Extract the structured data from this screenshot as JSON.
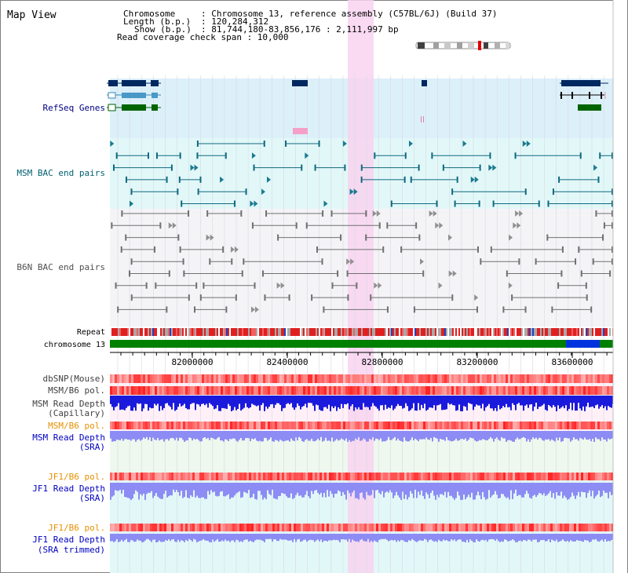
{
  "view": {
    "title": "Map View",
    "chromosome_key": "Chromosome",
    "chromosome_value": ": Chromosome 13, reference assembly (C57BL/6J) (Build 37)",
    "length_key": "Length (b.p.)",
    "length_value": ": 120,284,312",
    "show_key": "Show (b.p.)",
    "show_value": ": 81,744,180-83,856,176 : 2,111,997 bp",
    "coverage_line": "Read coverage check span : 10,000"
  },
  "tracks": {
    "refseq": "RefSeq Genes",
    "msm_bac": "MSM BAC end pairs",
    "b6n_bac": "B6N BAC end pairs",
    "repeat": "Repeat",
    "chromosome": "chromosome 13",
    "dbsnp": "dbSNP(Mouse)",
    "msm_b6_pol_1": "MSM/B6 pol.",
    "msm_depth_cap_1": "MSM Read Depth",
    "msm_depth_cap_2": "(Capillary)",
    "msm_b6_pol_2": "MSM/B6 pol.",
    "msm_depth_sra_1": "MSM Read Depth",
    "msm_depth_sra_2": "(SRA)",
    "jf1_pol_1": "JF1/B6 pol.",
    "jf1_depth_sra_1": "JF1 Read Depth",
    "jf1_depth_sra_2": "(SRA)",
    "jf1_pol_2": "JF1/B6 pol.",
    "jf1_depth_trim_1": "JF1 Read Depth",
    "jf1_depth_trim_2": "(SRA trimmed)"
  },
  "axis": {
    "tick1": "82000000",
    "tick2": "82400000",
    "tick3": "82800000",
    "tick4": "83200000",
    "tick5": "83600000"
  },
  "colors": {
    "label_navy": "#000080",
    "label_teal": "#006070",
    "label_gray": "#505050",
    "label_orange": "#e89000",
    "label_blue": "#0000c0",
    "highlight": "#f8d8f0",
    "refseq_bg": "#dcf0fa",
    "bac_bg": "#e4fafa",
    "b6n_bg": "#f4f4f8",
    "chrom_green": "#008000",
    "chrom_blue": "#0033dd",
    "depth_blue": "#1a1adc",
    "depth_light": "#8c8cf4"
  }
}
